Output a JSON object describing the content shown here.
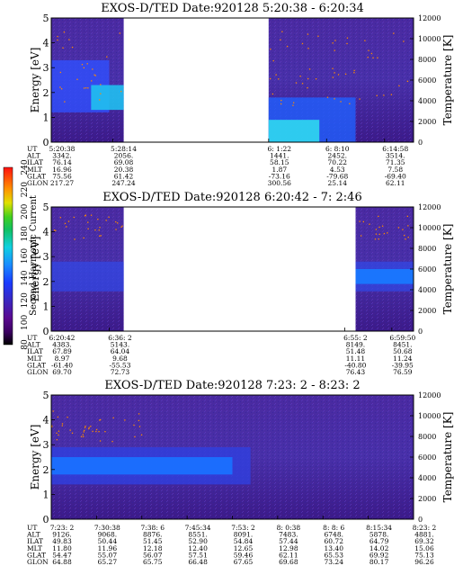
{
  "colorbar": {
    "label": "Second Harmonic Current",
    "ticks": [
      "80",
      "100",
      "120",
      "140",
      "160",
      "180",
      "200",
      "220",
      "240"
    ]
  },
  "chart_data": [
    {
      "type": "heatmap",
      "title": "EXOS-D/TED   Date:920128  5:20:38 - 6:20:34",
      "ylabel": "Energy [eV]",
      "y2label": "Temperature [K]",
      "ylim": [
        0,
        5
      ],
      "yticks": [
        "0",
        "1",
        "2",
        "3",
        "4",
        "5"
      ],
      "y2lim": [
        0,
        12000
      ],
      "y2ticks": [
        "0",
        "2000",
        "4000",
        "6000",
        "8000",
        "10000",
        "12000"
      ],
      "data_coverage": [
        [
          0,
          0.2
        ],
        [
          0.6,
          1.0
        ]
      ],
      "ephemeris": {
        "labels": [
          "UT",
          "ALT",
          "ILAT",
          "MLT",
          "GLAT",
          "GLON"
        ],
        "columns": [
          {
            "pos": 0.0,
            "values": [
              "5:20:38",
              "3342.",
              "76.14",
              "16.96",
              "75.56",
              "217.27"
            ]
          },
          {
            "pos": 0.17,
            "values": [
              "5:28:14",
              "2056.",
              "69.08",
              "20.38",
              "61.42",
              "247.24"
            ]
          },
          {
            "pos": 0.6,
            "values": [
              "6: 1:22",
              "1441.",
              "58.15",
              "1.87",
              "-73.16",
              "300.56"
            ]
          },
          {
            "pos": 0.76,
            "values": [
              "6: 8:10",
              "2452.",
              "70.22",
              "4.53",
              "-79.68",
              "25.14"
            ]
          },
          {
            "pos": 0.92,
            "values": [
              "6:14:58",
              "3514.",
              "71.35",
              "7.58",
              "-69.40",
              "62.11"
            ]
          }
        ]
      }
    },
    {
      "type": "heatmap",
      "title": "EXOS-D/TED   Date:920128  6:20:42 - 7: 2:46",
      "ylabel": "Energy [eV]",
      "y2label": "Temperature [K]",
      "ylim": [
        0,
        5
      ],
      "yticks": [
        "0",
        "1",
        "2",
        "3",
        "4",
        "5"
      ],
      "y2lim": [
        0,
        12000
      ],
      "y2ticks": [
        "0",
        "2000",
        "4000",
        "6000",
        "8000",
        "10000",
        "12000"
      ],
      "data_coverage": [
        [
          0,
          0.2
        ],
        [
          0.84,
          1.0
        ]
      ],
      "ephemeris": {
        "labels": [
          "UT",
          "ALT",
          "ILAT",
          "MLT",
          "GLAT",
          "GLON"
        ],
        "columns": [
          {
            "pos": 0.0,
            "values": [
              "6:20:42",
              "4383.",
              "67.89",
              "8.97",
              "-61.40",
              "69.70"
            ]
          },
          {
            "pos": 0.16,
            "values": [
              "6:36: 2",
              "5143.",
              "64.04",
              "9.68",
              "-55.53",
              "72.73"
            ]
          },
          {
            "pos": 0.81,
            "values": [
              "6:55: 2",
              "8149.",
              "51.48",
              "11.11",
              "-40.80",
              "76.43"
            ]
          },
          {
            "pos": 0.94,
            "values": [
              "6:59:50",
              "8451.",
              "50.68",
              "11.24",
              "-39.95",
              "76.59"
            ]
          }
        ]
      }
    },
    {
      "type": "heatmap",
      "title": "EXOS-D/TED   Date:920128  7:23: 2 - 8:23: 2",
      "ylabel": "Energy [eV]",
      "y2label": "Temperature [K]",
      "ylim": [
        0,
        5
      ],
      "yticks": [
        "0",
        "1",
        "2",
        "3",
        "4",
        "5"
      ],
      "y2lim": [
        0,
        12000
      ],
      "y2ticks": [
        "0",
        "2000",
        "4000",
        "6000",
        "8000",
        "10000",
        "12000"
      ],
      "data_coverage": [
        [
          0,
          1.0
        ]
      ],
      "ephemeris": {
        "labels": [
          "UT",
          "ALT",
          "ILAT",
          "MLT",
          "GLAT",
          "GLON"
        ],
        "columns": [
          {
            "pos": 0.0,
            "values": [
              "7:23: 2",
              "9126.",
              "49.83",
              "11.80",
              "54.47",
              "64.88"
            ]
          },
          {
            "pos": 0.125,
            "values": [
              "7:30:38",
              "9068.",
              "50.44",
              "11.96",
              "55.07",
              "65.27"
            ]
          },
          {
            "pos": 0.25,
            "values": [
              "7:38: 6",
              "8876.",
              "51.45",
              "12.18",
              "56.07",
              "65.75"
            ]
          },
          {
            "pos": 0.375,
            "values": [
              "7:45:34",
              "8551.",
              "52.90",
              "12.40",
              "57.51",
              "66.48"
            ]
          },
          {
            "pos": 0.5,
            "values": [
              "7:53: 2",
              "8091.",
              "54.84",
              "12.65",
              "59.46",
              "67.65"
            ]
          },
          {
            "pos": 0.625,
            "values": [
              "8: 0:38",
              "7483.",
              "57.44",
              "12.98",
              "62.11",
              "69.68"
            ]
          },
          {
            "pos": 0.75,
            "values": [
              "8: 8: 6",
              "6748.",
              "60.72",
              "13.40",
              "65.53",
              "73.24"
            ]
          },
          {
            "pos": 0.875,
            "values": [
              "8:15:34",
              "5878.",
              "64.79",
              "14.02",
              "69.92",
              "80.17"
            ]
          },
          {
            "pos": 1.0,
            "values": [
              "8:23: 2",
              "4881.",
              "69.32",
              "15.06",
              "75.13",
              "96.26"
            ]
          }
        ]
      }
    }
  ]
}
